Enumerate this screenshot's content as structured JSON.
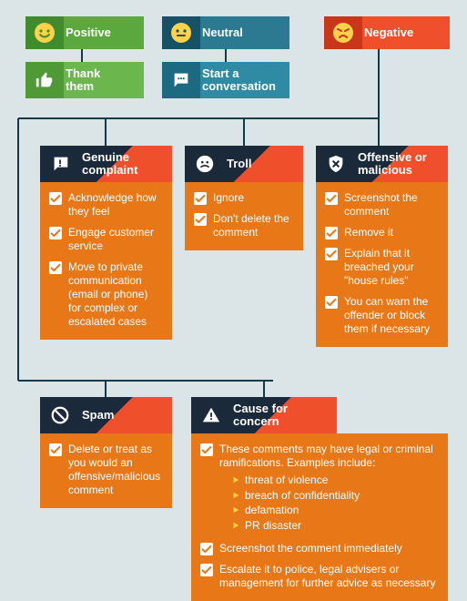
{
  "connector_color": "#0f3a4a",
  "top": {
    "positive": {
      "label": "Positive",
      "bg_light": "#5aa83e",
      "bg_dark": "#3f8c2c",
      "action_label": "Thank\nthem",
      "action_bg_light": "#6bb74e",
      "action_bg_dark": "#4f9a36"
    },
    "neutral": {
      "label": "Neutral",
      "bg_light": "#2b7a91",
      "bg_dark": "#165266",
      "action_label": "Start a\nconversation",
      "action_bg_light": "#2f8aa3",
      "action_bg_dark": "#1b6a82"
    },
    "negative": {
      "label": "Negative",
      "bg_light": "#ef4f2b",
      "bg_dark": "#c9361a"
    }
  },
  "cards": {
    "header_bg_dark": "#1a2a3a",
    "header_bg_accent": "#ef4f2b",
    "body_bg": "#e87817",
    "check_bg": "#ffffff",
    "check_tick": "#e87817",
    "sub_tri": "#ffd24a",
    "genuine": {
      "title": "Genuine\ncomplaint",
      "items": [
        "Acknowledge how they feel",
        "Engage customer service",
        "Move to private communication (email or phone) for complex or escalated cases"
      ]
    },
    "troll": {
      "title": "Troll",
      "items": [
        "Ignore",
        "Don't delete the comment"
      ]
    },
    "offensive": {
      "title": "Offensive or\nmalicious",
      "items": [
        "Screenshot the comment",
        "Remove it",
        "Explain that it breached your \"house rules\"",
        "You can warn the offender or block them if necessary"
      ]
    },
    "spam": {
      "title": "Spam",
      "items": [
        "Delete or treat as you would an offensive/malicious comment"
      ]
    },
    "concern": {
      "title": "Cause for\nconcern",
      "items": [
        {
          "text": "These comments may have legal or criminal ramifications. Examples include:",
          "sub": [
            "threat of violence",
            "breach of confidentiality",
            "defamation",
            "PR disaster"
          ]
        },
        {
          "text": "Screenshot the comment immediately"
        },
        {
          "text": "Escalate it to police, legal advisers or management for further advice as necessary"
        }
      ]
    }
  }
}
